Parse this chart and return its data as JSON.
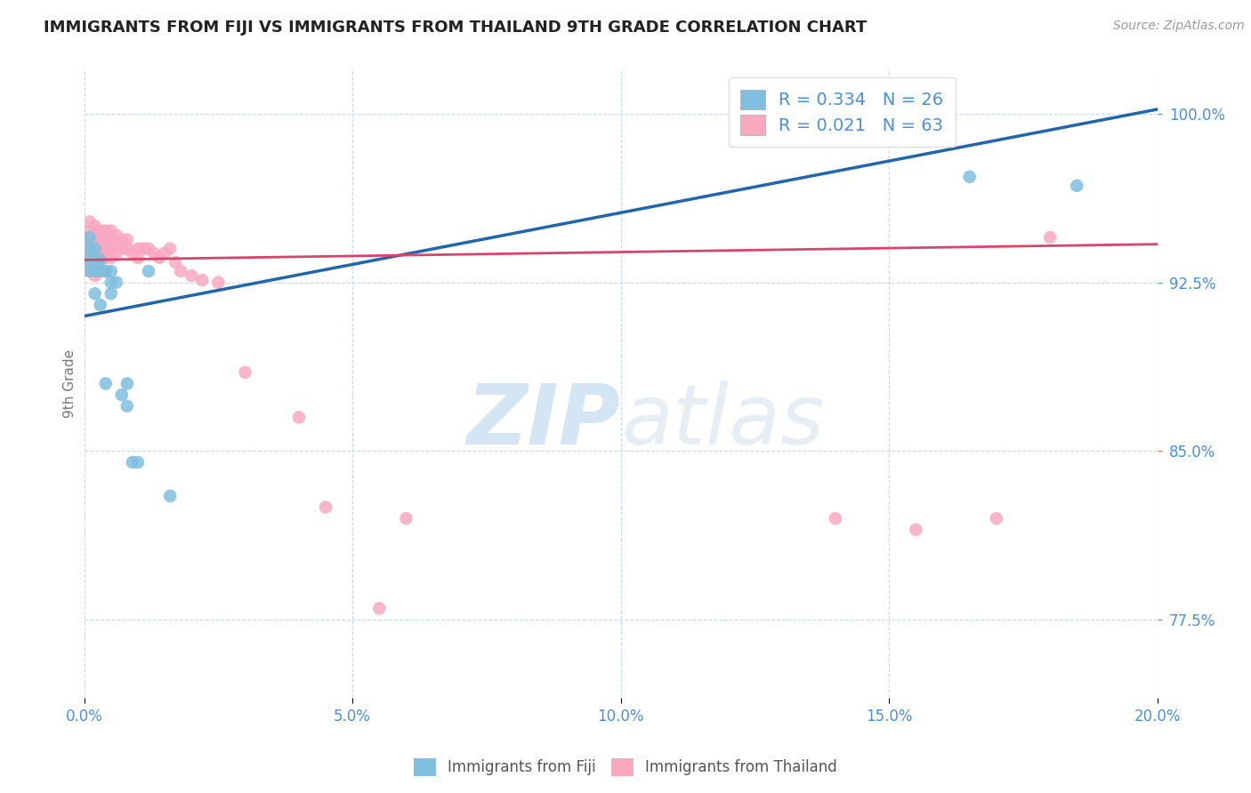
{
  "title": "IMMIGRANTS FROM FIJI VS IMMIGRANTS FROM THAILAND 9TH GRADE CORRELATION CHART",
  "source": "Source: ZipAtlas.com",
  "ylabel": "9th Grade",
  "xlim": [
    0.0,
    0.2
  ],
  "ylim": [
    0.74,
    1.02
  ],
  "yticks": [
    0.775,
    0.85,
    0.925,
    1.0
  ],
  "ytick_labels": [
    "77.5%",
    "85.0%",
    "92.5%",
    "100.0%"
  ],
  "xticks": [
    0.0,
    0.05,
    0.1,
    0.15,
    0.2
  ],
  "xtick_labels": [
    "0.0%",
    "5.0%",
    "10.0%",
    "15.0%",
    "20.0%"
  ],
  "fiji_color": "#7fbfdf",
  "thailand_color": "#f9a8c0",
  "fiji_line_color": "#2166ac",
  "thailand_line_color": "#d6456b",
  "fiji_R": 0.334,
  "fiji_N": 26,
  "thailand_R": 0.021,
  "thailand_N": 63,
  "legend_label_fiji": "Immigrants from Fiji",
  "legend_label_thailand": "Immigrants from Thailand",
  "watermark_zip": "ZIP",
  "watermark_atlas": "atlas",
  "background_color": "#ffffff",
  "grid_color": "#b8d0ea",
  "axis_color": "#4a90d9",
  "fiji_line_x0": 0.0,
  "fiji_line_y0": 0.91,
  "fiji_line_x1": 0.2,
  "fiji_line_y1": 1.002,
  "thailand_line_x0": 0.0,
  "thailand_line_y0": 0.935,
  "thailand_line_x1": 0.2,
  "thailand_line_y1": 0.942,
  "fiji_x": [
    0.001,
    0.001,
    0.001,
    0.001,
    0.002,
    0.002,
    0.002,
    0.003,
    0.003,
    0.004,
    0.005,
    0.005,
    0.005,
    0.006,
    0.008,
    0.009,
    0.01,
    0.012,
    0.165,
    0.185,
    0.002,
    0.003,
    0.004,
    0.007,
    0.008,
    0.016
  ],
  "fiji_y": [
    0.945,
    0.94,
    0.935,
    0.93,
    0.94,
    0.935,
    0.93,
    0.935,
    0.93,
    0.93,
    0.93,
    0.925,
    0.92,
    0.925,
    0.88,
    0.845,
    0.845,
    0.93,
    0.972,
    0.968,
    0.92,
    0.915,
    0.88,
    0.875,
    0.87,
    0.83
  ],
  "thailand_x": [
    0.001,
    0.001,
    0.001,
    0.001,
    0.001,
    0.001,
    0.001,
    0.001,
    0.001,
    0.001,
    0.002,
    0.002,
    0.002,
    0.002,
    0.002,
    0.002,
    0.002,
    0.002,
    0.003,
    0.003,
    0.003,
    0.003,
    0.003,
    0.003,
    0.004,
    0.004,
    0.004,
    0.004,
    0.004,
    0.005,
    0.005,
    0.005,
    0.005,
    0.006,
    0.006,
    0.006,
    0.007,
    0.007,
    0.008,
    0.008,
    0.009,
    0.01,
    0.01,
    0.011,
    0.012,
    0.013,
    0.014,
    0.015,
    0.016,
    0.017,
    0.018,
    0.02,
    0.022,
    0.025,
    0.03,
    0.04,
    0.045,
    0.055,
    0.06,
    0.14,
    0.155,
    0.17,
    0.18
  ],
  "thailand_y": [
    0.952,
    0.948,
    0.945,
    0.942,
    0.94,
    0.938,
    0.936,
    0.934,
    0.932,
    0.93,
    0.95,
    0.946,
    0.943,
    0.94,
    0.937,
    0.934,
    0.931,
    0.928,
    0.948,
    0.945,
    0.942,
    0.939,
    0.936,
    0.93,
    0.948,
    0.945,
    0.94,
    0.936,
    0.93,
    0.948,
    0.944,
    0.94,
    0.936,
    0.946,
    0.942,
    0.938,
    0.944,
    0.94,
    0.944,
    0.94,
    0.938,
    0.94,
    0.936,
    0.94,
    0.94,
    0.938,
    0.936,
    0.938,
    0.94,
    0.934,
    0.93,
    0.928,
    0.926,
    0.925,
    0.885,
    0.865,
    0.825,
    0.78,
    0.82,
    0.82,
    0.815,
    0.82,
    0.945
  ]
}
